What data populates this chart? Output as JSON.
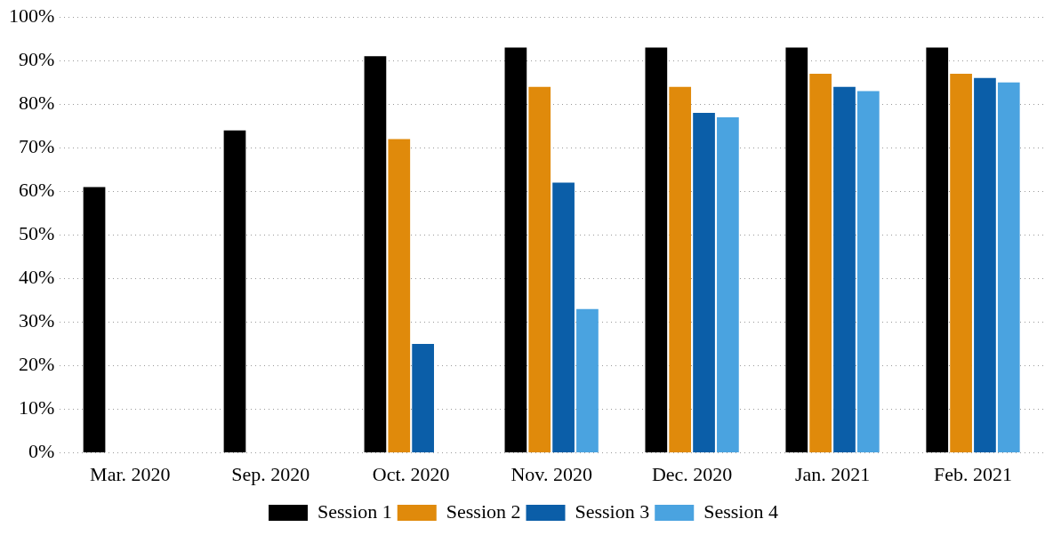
{
  "chart_data": {
    "type": "bar",
    "categories": [
      "Mar. 2020",
      "Sep. 2020",
      "Oct. 2020",
      "Nov. 2020",
      "Dec. 2020",
      "Jan. 2021",
      "Feb. 2021"
    ],
    "series": [
      {
        "name": "Session 1",
        "color": "#000000",
        "values": [
          61,
          74,
          91,
          93,
          93,
          93,
          93
        ]
      },
      {
        "name": "Session 2",
        "color": "#e08a0b",
        "values": [
          null,
          null,
          72,
          84,
          84,
          87,
          87
        ]
      },
      {
        "name": "Session 3",
        "color": "#0b5ea8",
        "values": [
          null,
          null,
          25,
          62,
          78,
          84,
          86
        ]
      },
      {
        "name": "Session 4",
        "color": "#4aa3e0",
        "values": [
          null,
          null,
          null,
          33,
          77,
          83,
          85
        ]
      }
    ],
    "ylim": [
      0,
      100
    ],
    "yticks": [
      {
        "value": 0,
        "label": "0%"
      },
      {
        "value": 10,
        "label": "10%"
      },
      {
        "value": 20,
        "label": "20%"
      },
      {
        "value": 30,
        "label": "30%"
      },
      {
        "value": 40,
        "label": "40%"
      },
      {
        "value": 50,
        "label": "50%"
      },
      {
        "value": 60,
        "label": "60%"
      },
      {
        "value": 70,
        "label": "70%"
      },
      {
        "value": 80,
        "label": "80%"
      },
      {
        "value": 90,
        "label": "90%"
      },
      {
        "value": 100,
        "label": "100%"
      }
    ],
    "grid": "y",
    "legend": "bottom"
  }
}
